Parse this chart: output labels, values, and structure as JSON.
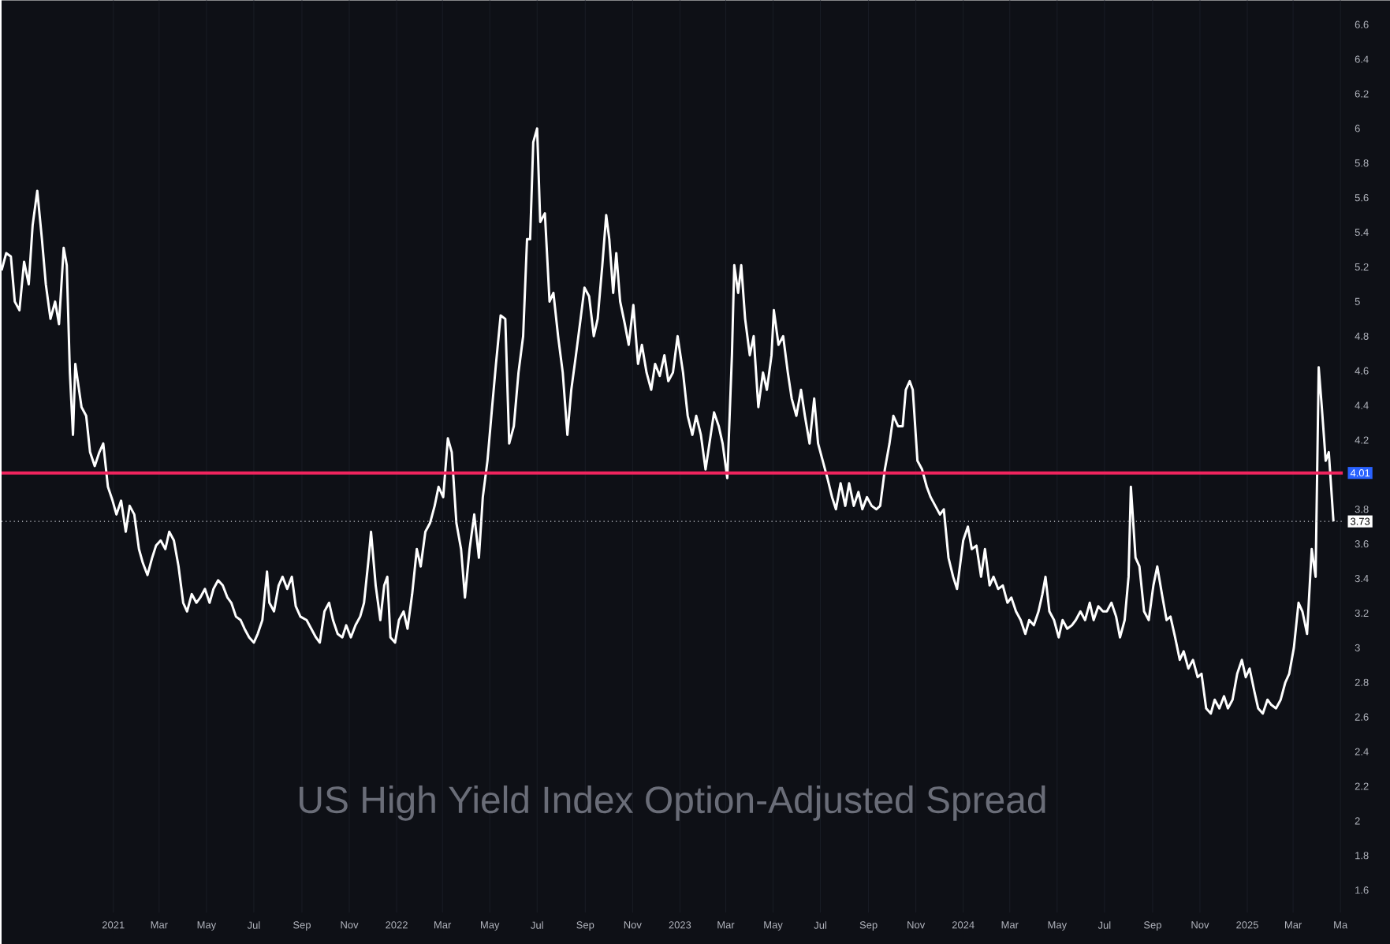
{
  "chart_data": {
    "type": "line",
    "title": "US High Yield Index Option-Adjusted Spread",
    "x": [
      "2020-08-10",
      "2020-08-16",
      "2020-08-22",
      "2020-08-27",
      "2020-09-02",
      "2020-09-08",
      "2020-09-14",
      "2020-09-19",
      "2020-09-25",
      "2020-10-01",
      "2020-10-06",
      "2020-10-12",
      "2020-10-18",
      "2020-10-23",
      "2020-10-29",
      "2020-11-02",
      "2020-11-06",
      "2020-11-10",
      "2020-11-13",
      "2020-11-21",
      "2020-11-27",
      "2020-12-02",
      "2020-12-08",
      "2020-12-14",
      "2020-12-19",
      "2020-12-25",
      "2020-12-31",
      "2021-01-05",
      "2021-01-11",
      "2021-01-17",
      "2021-01-22",
      "2021-01-28",
      "2021-02-03",
      "2021-02-08",
      "2021-02-14",
      "2021-02-20",
      "2021-02-25",
      "2021-03-03",
      "2021-03-09",
      "2021-03-14",
      "2021-03-20",
      "2021-03-26",
      "2021-04-01",
      "2021-04-06",
      "2021-04-12",
      "2021-04-18",
      "2021-04-23",
      "2021-04-29",
      "2021-05-05",
      "2021-05-10",
      "2021-05-16",
      "2021-05-22",
      "2021-05-28",
      "2021-06-02",
      "2021-06-08",
      "2021-06-14",
      "2021-06-19",
      "2021-06-25",
      "2021-07-01",
      "2021-07-06",
      "2021-07-12",
      "2021-07-18",
      "2021-07-21",
      "2021-07-27",
      "2021-08-02",
      "2021-08-07",
      "2021-08-13",
      "2021-08-19",
      "2021-08-24",
      "2021-08-30",
      "2021-09-07",
      "2021-09-13",
      "2021-09-19",
      "2021-09-24",
      "2021-09-30",
      "2021-10-06",
      "2021-10-11",
      "2021-10-17",
      "2021-10-23",
      "2021-10-28",
      "2021-11-03",
      "2021-11-09",
      "2021-11-15",
      "2021-11-20",
      "2021-11-26",
      "2021-11-29",
      "2021-12-05",
      "2021-12-11",
      "2021-12-16",
      "2021-12-20",
      "2021-12-24",
      "2021-12-30",
      "2022-01-04",
      "2022-01-10",
      "2022-01-15",
      "2022-01-21",
      "2022-01-27",
      "2022-02-01",
      "2022-02-07",
      "2022-02-13",
      "2022-02-19",
      "2022-02-24",
      "2022-03-02",
      "2022-03-08",
      "2022-03-13",
      "2022-03-19",
      "2022-03-25",
      "2022-03-30",
      "2022-04-05",
      "2022-04-11",
      "2022-04-17",
      "2022-04-22",
      "2022-04-28",
      "2022-05-04",
      "2022-05-09",
      "2022-05-15",
      "2022-05-21",
      "2022-05-26",
      "2022-06-01",
      "2022-06-07",
      "2022-06-13",
      "2022-06-18",
      "2022-06-22",
      "2022-06-26",
      "2022-07-01",
      "2022-07-05",
      "2022-07-11",
      "2022-07-17",
      "2022-07-22",
      "2022-07-28",
      "2022-08-03",
      "2022-08-09",
      "2022-08-14",
      "2022-08-20",
      "2022-08-26",
      "2022-08-31",
      "2022-09-06",
      "2022-09-12",
      "2022-09-17",
      "2022-09-23",
      "2022-09-28",
      "2022-10-02",
      "2022-10-07",
      "2022-10-11",
      "2022-10-16",
      "2022-10-22",
      "2022-10-27",
      "2022-11-02",
      "2022-11-08",
      "2022-11-13",
      "2022-11-19",
      "2022-11-25",
      "2022-11-30",
      "2022-12-06",
      "2022-12-12",
      "2022-12-17",
      "2022-12-23",
      "2022-12-29",
      "2023-01-05",
      "2023-01-11",
      "2023-01-17",
      "2023-01-22",
      "2023-01-28",
      "2023-02-03",
      "2023-02-08",
      "2023-02-14",
      "2023-02-20",
      "2023-02-25",
      "2023-03-03",
      "2023-03-09",
      "2023-03-12",
      "2023-03-17",
      "2023-03-21",
      "2023-03-26",
      "2023-04-01",
      "2023-04-06",
      "2023-04-12",
      "2023-04-18",
      "2023-04-23",
      "2023-04-29",
      "2023-05-02",
      "2023-05-08",
      "2023-05-14",
      "2023-05-20",
      "2023-05-25",
      "2023-05-31",
      "2023-06-06",
      "2023-06-11",
      "2023-06-17",
      "2023-06-23",
      "2023-06-28",
      "2023-07-04",
      "2023-07-10",
      "2023-07-16",
      "2023-07-21",
      "2023-07-27",
      "2023-08-02",
      "2023-08-07",
      "2023-08-13",
      "2023-08-19",
      "2023-08-24",
      "2023-08-30",
      "2023-09-05",
      "2023-09-11",
      "2023-09-16",
      "2023-09-22",
      "2023-09-28",
      "2023-10-03",
      "2023-10-09",
      "2023-10-15",
      "2023-10-19",
      "2023-10-24",
      "2023-10-28",
      "2023-11-03",
      "2023-11-09",
      "2023-11-15",
      "2023-11-20",
      "2023-11-26",
      "2023-12-02",
      "2023-12-07",
      "2023-12-13",
      "2023-12-19",
      "2023-12-24",
      "2024-01-01",
      "2024-01-07",
      "2024-01-12",
      "2024-01-18",
      "2024-01-24",
      "2024-01-29",
      "2024-02-04",
      "2024-02-09",
      "2024-02-15",
      "2024-02-21",
      "2024-02-27",
      "2024-03-03",
      "2024-03-09",
      "2024-03-15",
      "2024-03-21",
      "2024-03-26",
      "2024-04-01",
      "2024-04-07",
      "2024-04-12",
      "2024-04-16",
      "2024-04-21",
      "2024-04-27",
      "2024-05-03",
      "2024-05-08",
      "2024-05-14",
      "2024-05-20",
      "2024-05-25",
      "2024-05-31",
      "2024-06-06",
      "2024-06-12",
      "2024-06-17",
      "2024-06-23",
      "2024-06-29",
      "2024-07-04",
      "2024-07-10",
      "2024-07-16",
      "2024-07-21",
      "2024-07-27",
      "2024-08-01",
      "2024-08-04",
      "2024-08-10",
      "2024-08-15",
      "2024-08-21",
      "2024-08-27",
      "2024-09-02",
      "2024-09-07",
      "2024-09-13",
      "2024-09-19",
      "2024-09-24",
      "2024-09-30",
      "2024-10-06",
      "2024-10-11",
      "2024-10-17",
      "2024-10-23",
      "2024-10-29",
      "2024-11-03",
      "2024-11-09",
      "2024-11-15",
      "2024-11-20",
      "2024-11-26",
      "2024-12-02",
      "2024-12-07",
      "2024-12-13",
      "2024-12-19",
      "2024-12-25",
      "2024-12-30",
      "2025-01-04",
      "2025-01-10",
      "2025-01-15",
      "2025-01-21",
      "2025-01-27",
      "2025-02-01",
      "2025-02-07",
      "2025-02-13",
      "2025-02-19",
      "2025-02-24",
      "2025-03-02",
      "2025-03-08",
      "2025-03-13",
      "2025-03-19",
      "2025-03-25",
      "2025-03-30",
      "2025-04-03",
      "2025-04-07",
      "2025-04-12",
      "2025-04-16",
      "2025-04-22"
    ],
    "series": [
      {
        "color": "#ffffff",
        "values": [
          5.18,
          5.28,
          5.26,
          5.0,
          4.95,
          5.23,
          5.1,
          5.44,
          5.64,
          5.36,
          5.1,
          4.9,
          5.0,
          4.87,
          5.31,
          5.21,
          4.59,
          4.23,
          4.64,
          4.39,
          4.34,
          4.13,
          4.05,
          4.13,
          4.18,
          3.93,
          3.85,
          3.77,
          3.85,
          3.67,
          3.82,
          3.77,
          3.57,
          3.49,
          3.42,
          3.52,
          3.59,
          3.62,
          3.57,
          3.67,
          3.62,
          3.47,
          3.26,
          3.21,
          3.31,
          3.26,
          3.29,
          3.34,
          3.26,
          3.34,
          3.39,
          3.36,
          3.29,
          3.26,
          3.18,
          3.16,
          3.11,
          3.06,
          3.03,
          3.08,
          3.16,
          3.44,
          3.26,
          3.21,
          3.36,
          3.41,
          3.34,
          3.41,
          3.24,
          3.18,
          3.16,
          3.11,
          3.06,
          3.03,
          3.21,
          3.26,
          3.16,
          3.08,
          3.06,
          3.13,
          3.06,
          3.13,
          3.18,
          3.26,
          3.52,
          3.67,
          3.36,
          3.16,
          3.36,
          3.41,
          3.06,
          3.03,
          3.16,
          3.21,
          3.11,
          3.31,
          3.57,
          3.47,
          3.67,
          3.72,
          3.82,
          3.93,
          3.87,
          4.21,
          4.13,
          3.72,
          3.57,
          3.29,
          3.57,
          3.77,
          3.52,
          3.87,
          4.08,
          4.39,
          4.64,
          4.92,
          4.9,
          4.18,
          4.28,
          4.59,
          4.8,
          5.36,
          5.36,
          5.92,
          6.0,
          5.46,
          5.51,
          5.0,
          5.05,
          4.8,
          4.59,
          4.23,
          4.49,
          4.69,
          4.9,
          5.08,
          5.03,
          4.8,
          4.9,
          5.21,
          5.5,
          5.36,
          5.05,
          5.28,
          5.0,
          4.87,
          4.75,
          4.98,
          4.64,
          4.75,
          4.59,
          4.49,
          4.64,
          4.57,
          4.69,
          4.54,
          4.59,
          4.8,
          4.59,
          4.34,
          4.23,
          4.34,
          4.23,
          4.03,
          4.18,
          4.36,
          4.28,
          4.18,
          3.98,
          4.69,
          5.21,
          5.05,
          5.21,
          4.9,
          4.69,
          4.8,
          4.39,
          4.59,
          4.49,
          4.69,
          4.95,
          4.75,
          4.8,
          4.59,
          4.44,
          4.34,
          4.49,
          4.34,
          4.18,
          4.44,
          4.18,
          4.08,
          3.98,
          3.87,
          3.8,
          3.95,
          3.82,
          3.95,
          3.82,
          3.9,
          3.8,
          3.87,
          3.82,
          3.8,
          3.82,
          4.03,
          4.18,
          4.34,
          4.28,
          4.28,
          4.49,
          4.54,
          4.49,
          4.08,
          4.03,
          3.93,
          3.87,
          3.82,
          3.77,
          3.8,
          3.52,
          3.41,
          3.34,
          3.62,
          3.7,
          3.57,
          3.59,
          3.41,
          3.57,
          3.36,
          3.41,
          3.34,
          3.36,
          3.26,
          3.29,
          3.21,
          3.16,
          3.08,
          3.16,
          3.13,
          3.21,
          3.31,
          3.41,
          3.21,
          3.16,
          3.06,
          3.16,
          3.11,
          3.13,
          3.16,
          3.21,
          3.16,
          3.26,
          3.16,
          3.24,
          3.21,
          3.21,
          3.26,
          3.18,
          3.06,
          3.16,
          3.41,
          3.93,
          3.52,
          3.47,
          3.21,
          3.16,
          3.36,
          3.47,
          3.31,
          3.16,
          3.18,
          3.06,
          2.93,
          2.98,
          2.88,
          2.93,
          2.83,
          2.85,
          2.65,
          2.62,
          2.7,
          2.65,
          2.72,
          2.65,
          2.7,
          2.85,
          2.93,
          2.83,
          2.88,
          2.75,
          2.65,
          2.62,
          2.7,
          2.67,
          2.65,
          2.7,
          2.8,
          2.85,
          3.0,
          3.26,
          3.21,
          3.08,
          3.57,
          3.41,
          4.62,
          4.39,
          4.08,
          4.13,
          3.73
        ]
      }
    ],
    "xlim": [
      "2020-08-10",
      "2025-05-04"
    ],
    "ylim": [
      1.47,
      6.74
    ],
    "xticks": [
      {
        "value": "2021-01-01",
        "label": "2021"
      },
      {
        "value": "2021-03-01",
        "label": "Mar"
      },
      {
        "value": "2021-05-01",
        "label": "May"
      },
      {
        "value": "2021-07-01",
        "label": "Jul"
      },
      {
        "value": "2021-09-01",
        "label": "Sep"
      },
      {
        "value": "2021-11-01",
        "label": "Nov"
      },
      {
        "value": "2022-01-01",
        "label": "2022"
      },
      {
        "value": "2022-03-01",
        "label": "Mar"
      },
      {
        "value": "2022-05-01",
        "label": "May"
      },
      {
        "value": "2022-07-01",
        "label": "Jul"
      },
      {
        "value": "2022-09-01",
        "label": "Sep"
      },
      {
        "value": "2022-11-01",
        "label": "Nov"
      },
      {
        "value": "2023-01-01",
        "label": "2023"
      },
      {
        "value": "2023-03-01",
        "label": "Mar"
      },
      {
        "value": "2023-05-01",
        "label": "May"
      },
      {
        "value": "2023-07-01",
        "label": "Jul"
      },
      {
        "value": "2023-09-01",
        "label": "Sep"
      },
      {
        "value": "2023-11-01",
        "label": "Nov"
      },
      {
        "value": "2024-01-01",
        "label": "2024"
      },
      {
        "value": "2024-03-01",
        "label": "Mar"
      },
      {
        "value": "2024-05-01",
        "label": "May"
      },
      {
        "value": "2024-07-01",
        "label": "Jul"
      },
      {
        "value": "2024-09-01",
        "label": "Sep"
      },
      {
        "value": "2024-11-01",
        "label": "Nov"
      },
      {
        "value": "2025-01-01",
        "label": "2025"
      },
      {
        "value": "2025-03-01",
        "label": "Mar"
      },
      {
        "value": "2025-05-01",
        "label": "Ma"
      }
    ],
    "yticks": [
      1.6,
      1.8,
      2,
      2.2,
      2.4,
      2.6,
      2.8,
      3,
      3.2,
      3.4,
      3.6,
      3.8,
      4.2,
      4.4,
      4.6,
      4.8,
      5,
      5.2,
      5.4,
      5.6,
      5.8,
      6,
      6.2,
      6.4,
      6.6
    ],
    "ref_lines": [
      {
        "axis": "y",
        "value": 4.01,
        "label": "4.01",
        "color": "#f0245e",
        "line_style": "solid"
      },
      {
        "axis": "y",
        "value": 3.73,
        "label": "3.73",
        "color": "#d1d4dc",
        "line_style": "dotted"
      }
    ],
    "grid": "x",
    "marker": "none",
    "line_style": "solid"
  }
}
